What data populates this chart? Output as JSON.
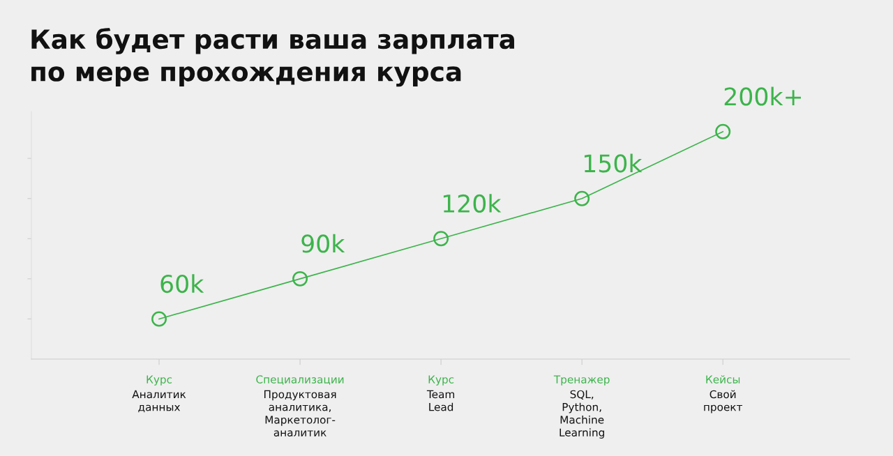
{
  "chart_data": {
    "type": "line",
    "title": "Как будет расти ваша зарплата\nпо мере прохождения курса",
    "categories": [
      "Курс\nАналитик\nданных",
      "Специализации\nПродуктовая\nаналитика,\nМаркетолог-\nаналитик",
      "Курс\nTeam\nLead",
      "Тренажер\nSQL,\nPython,\nMachine\nLearning",
      "Кейсы\nСвой\nпроект"
    ],
    "series": [
      {
        "color": "#3cb44b",
        "values": [
          60,
          90,
          120,
          150,
          200
        ],
        "value_labels": [
          "60k",
          "90k",
          "120k",
          "150k",
          "200k+"
        ]
      }
    ],
    "ylim": [
      30,
      215
    ],
    "yticks": [
      {
        "value": 60,
        "label": null
      },
      {
        "value": 90,
        "label": null
      },
      {
        "value": 120,
        "label": null
      },
      {
        "value": 150,
        "label": null
      },
      {
        "value": 180,
        "label": null
      }
    ],
    "marker": "circle",
    "line_style": "solid",
    "grid": false,
    "legend": false,
    "tick_labels": "x"
  }
}
